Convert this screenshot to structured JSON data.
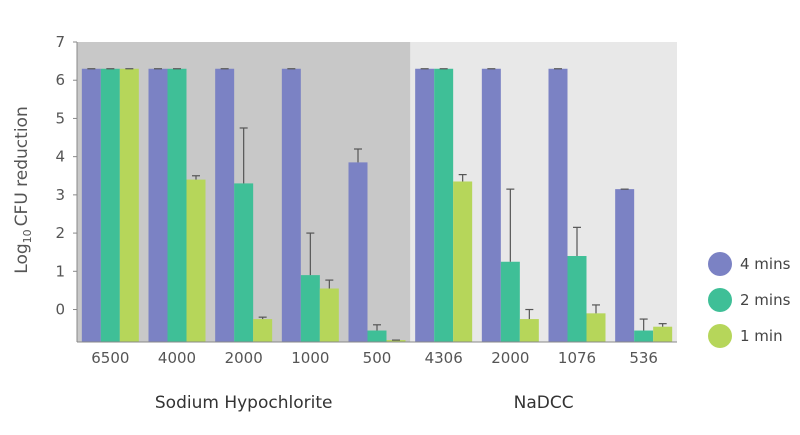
{
  "chart_data": {
    "type": "bar",
    "title": "",
    "ylabel": "CFU reduction",
    "ylabel_prefix": "Log",
    "ylabel_subscript": "10",
    "ylim": [
      -0.85,
      7
    ],
    "yticks": [
      0,
      1,
      2,
      3,
      4,
      5,
      6,
      7
    ],
    "ytick_labels": [
      "0",
      "1",
      "2",
      "3",
      "4",
      "5",
      "6",
      "7"
    ],
    "groups": [
      {
        "name": "Sodium Hypochlorite",
        "categories": [
          "6500",
          "4000",
          "2000",
          "1000",
          "500"
        ],
        "background": "#c8c8c8"
      },
      {
        "name": "NaDCC",
        "categories": [
          "4306",
          "2000",
          "1076",
          "536"
        ],
        "background": "#e8e8e8"
      }
    ],
    "categories": [
      "6500",
      "4000",
      "2000",
      "1000",
      "500",
      "4306",
      "2000",
      "1076",
      "536"
    ],
    "series": [
      {
        "name": "4 mins",
        "color": "#7b82c4",
        "values": [
          6.3,
          6.3,
          6.3,
          6.3,
          3.85,
          6.3,
          6.3,
          6.3,
          3.15
        ],
        "errors": [
          0,
          0,
          0,
          0,
          0.35,
          0,
          0,
          0,
          0
        ]
      },
      {
        "name": "2 mins",
        "color": "#3fbf97",
        "values": [
          6.3,
          6.3,
          3.3,
          0.9,
          -0.55,
          6.3,
          1.25,
          1.4,
          -0.55
        ],
        "errors": [
          0,
          0,
          1.45,
          1.1,
          0.15,
          0,
          1.9,
          0.75,
          0.3
        ]
      },
      {
        "name": "1 min",
        "color": "#b6d65a",
        "values": [
          6.3,
          3.4,
          -0.25,
          0.55,
          -0.8,
          3.35,
          -0.25,
          -0.1,
          -0.45
        ],
        "errors": [
          0,
          0.1,
          0.05,
          0.22,
          0,
          0.18,
          0.25,
          0.22,
          0.08
        ]
      }
    ],
    "legend_position": "right",
    "grid": false
  }
}
